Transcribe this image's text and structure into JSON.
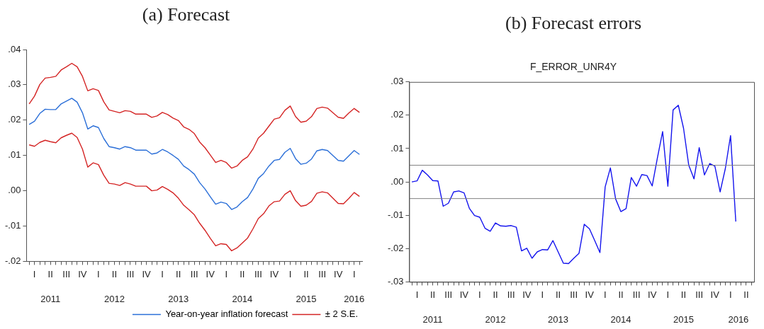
{
  "chart_data": [
    {
      "type": "line",
      "title": "(a) Forecast",
      "categories": [
        null,
        "I",
        null,
        null,
        "II",
        null,
        null,
        "III",
        null,
        null,
        "IV",
        null,
        null,
        "I",
        null,
        null,
        "II",
        null,
        null,
        "III",
        null,
        null,
        "IV",
        null,
        null,
        "I",
        null,
        null,
        "II",
        null,
        null,
        "III",
        null,
        null,
        "IV",
        null,
        null,
        "I",
        null,
        null,
        "II",
        null,
        null,
        "III",
        null,
        null,
        "IV",
        null,
        null,
        "I",
        null,
        null,
        "II",
        null,
        null,
        "III",
        null,
        null,
        "IV",
        null,
        null,
        "I",
        null
      ],
      "series": [
        {
          "name": "Year-on-year inflation forecast",
          "color": "#2b6fd8",
          "values": [
            0.0188,
            0.0197,
            0.0219,
            0.0231,
            0.023,
            0.023,
            0.0246,
            0.0254,
            0.0262,
            0.0251,
            0.0221,
            0.0175,
            0.0184,
            0.0179,
            0.0148,
            0.0125,
            0.0122,
            0.0118,
            0.0125,
            0.0122,
            0.0115,
            0.0115,
            0.0115,
            0.0104,
            0.0107,
            0.0117,
            0.011,
            0.01,
            0.0089,
            0.007,
            0.006,
            0.0047,
            0.0023,
            0.0005,
            -0.0017,
            -0.0038,
            -0.0032,
            -0.0036,
            -0.0053,
            -0.0046,
            -0.0031,
            -0.0019,
            0.0005,
            0.0035,
            0.0049,
            0.007,
            0.0086,
            0.0089,
            0.0109,
            0.012,
            0.0091,
            0.0075,
            0.0078,
            0.009,
            0.0113,
            0.0117,
            0.0114,
            0.01,
            0.0086,
            0.0084,
            0.0099,
            0.0114,
            0.0103
          ]
        },
        {
          "name": "± 2 S.E.",
          "color": "#d42424",
          "values": [
            0.0246,
            0.0268,
            0.0301,
            0.0319,
            0.0321,
            0.0324,
            0.0342,
            0.0351,
            0.0361,
            0.0351,
            0.0324,
            0.0283,
            0.0289,
            0.0284,
            0.0252,
            0.0229,
            0.0225,
            0.0221,
            0.0227,
            0.0225,
            0.0217,
            0.0217,
            0.0217,
            0.0208,
            0.0212,
            0.0222,
            0.0216,
            0.0206,
            0.0199,
            0.0181,
            0.0174,
            0.0162,
            0.0138,
            0.0122,
            0.0101,
            0.008,
            0.0086,
            0.008,
            0.0064,
            0.007,
            0.0086,
            0.0096,
            0.0118,
            0.0149,
            0.0163,
            0.0183,
            0.0203,
            0.0207,
            0.0228,
            0.024,
            0.021,
            0.0194,
            0.0197,
            0.021,
            0.0233,
            0.0237,
            0.0234,
            0.0221,
            0.0208,
            0.0205,
            0.022,
            0.0233,
            0.0222
          ]
        },
        {
          "color": "#d42424",
          "values": [
            0.013,
            0.0126,
            0.0137,
            0.0143,
            0.0139,
            0.0136,
            0.015,
            0.0157,
            0.0163,
            0.0151,
            0.0118,
            0.0067,
            0.0079,
            0.0074,
            0.0044,
            0.0021,
            0.0019,
            0.0015,
            0.0023,
            0.0019,
            0.0013,
            0.0013,
            0.0013,
            0.0,
            0.0002,
            0.0012,
            0.0004,
            -0.0006,
            -0.0021,
            -0.0041,
            -0.0054,
            -0.0068,
            -0.0092,
            -0.0112,
            -0.0135,
            -0.0156,
            -0.015,
            -0.0152,
            -0.017,
            -0.0162,
            -0.0148,
            -0.0134,
            -0.0108,
            -0.0079,
            -0.0065,
            -0.0043,
            -0.0031,
            -0.0029,
            -0.001,
            0.0,
            -0.0028,
            -0.0044,
            -0.0041,
            -0.003,
            -0.0007,
            -0.0003,
            -0.0006,
            -0.0021,
            -0.0036,
            -0.0037,
            -0.0022,
            -0.0005,
            -0.0016
          ]
        }
      ],
      "ylim": [
        -0.02,
        0.04
      ],
      "yticks": [
        {
          "value": -0.02,
          "label": "-.02"
        },
        {
          "value": -0.01,
          "label": "-.01"
        },
        {
          "value": 0,
          "label": ".00"
        },
        {
          "value": 0.01,
          "label": ".01"
        },
        {
          "value": 0.02,
          "label": ".02"
        },
        {
          "value": 0.03,
          "label": ".03"
        },
        {
          "value": 0.04,
          "label": ".04"
        }
      ],
      "annotations": [
        "2011",
        "2012",
        "2013",
        "2014",
        "2015",
        "2016"
      ],
      "legend": "bottom right"
    },
    {
      "type": "line",
      "title": "(b) Forecast errors",
      "subtitle": "F_ERROR_UNR4Y",
      "categories": [
        null,
        "I",
        null,
        null,
        "II",
        null,
        null,
        "III",
        null,
        null,
        "IV",
        null,
        null,
        "I",
        null,
        null,
        "II",
        null,
        null,
        "III",
        null,
        null,
        "IV",
        null,
        null,
        "I",
        null,
        null,
        "II",
        null,
        null,
        "III",
        null,
        null,
        "IV",
        null,
        null,
        "I",
        null,
        null,
        "II",
        null,
        null,
        "III",
        null,
        null,
        "IV",
        null,
        null,
        "I",
        null,
        null,
        "II",
        null,
        null,
        "III",
        null,
        null,
        "IV",
        null,
        null,
        "I",
        null,
        null,
        "II",
        null
      ],
      "series": [
        {
          "color": "#1414ee",
          "values": [
            0.0,
            0.0003,
            0.0035,
            0.0021,
            0.0004,
            0.0003,
            -0.0073,
            -0.0064,
            -0.003,
            -0.0027,
            -0.0033,
            -0.0079,
            -0.0101,
            -0.0106,
            -0.0139,
            -0.0148,
            -0.0123,
            -0.0132,
            -0.0133,
            -0.0131,
            -0.0136,
            -0.0207,
            -0.0199,
            -0.0229,
            -0.021,
            -0.0203,
            -0.0204,
            -0.0176,
            -0.021,
            -0.0244,
            -0.0245,
            -0.0229,
            -0.0214,
            -0.0127,
            -0.0141,
            -0.0176,
            -0.0212,
            -0.0015,
            0.0042,
            -0.0051,
            -0.0089,
            -0.008,
            0.0013,
            -0.0013,
            0.0022,
            0.0019,
            -0.0012,
            0.0072,
            0.0151,
            -0.0013,
            0.0216,
            0.023,
            0.0161,
            0.005,
            0.0009,
            0.0103,
            0.0021,
            0.0055,
            0.0047,
            -0.003,
            0.004,
            0.0139,
            -0.0119,
            null,
            null,
            null
          ]
        }
      ],
      "ylim": [
        -0.03,
        0.03
      ],
      "yticks": [
        {
          "value": -0.03,
          "label": "-.03"
        },
        {
          "value": -0.02,
          "label": "-.02"
        },
        {
          "value": -0.01,
          "label": "-.01"
        },
        {
          "value": 0,
          "label": ".00"
        },
        {
          "value": 0.01,
          "label": ".01"
        },
        {
          "value": 0.02,
          "label": ".02"
        },
        {
          "value": 0.03,
          "label": ".03"
        }
      ],
      "ref_lines": [
        {
          "axis": "y",
          "value": 0.005,
          "color": "#808080"
        },
        {
          "axis": "y",
          "value": -0.005,
          "color": "#808080"
        }
      ],
      "annotations": [
        "2011",
        "2012",
        "2013",
        "2014",
        "2015",
        "2016"
      ]
    }
  ]
}
